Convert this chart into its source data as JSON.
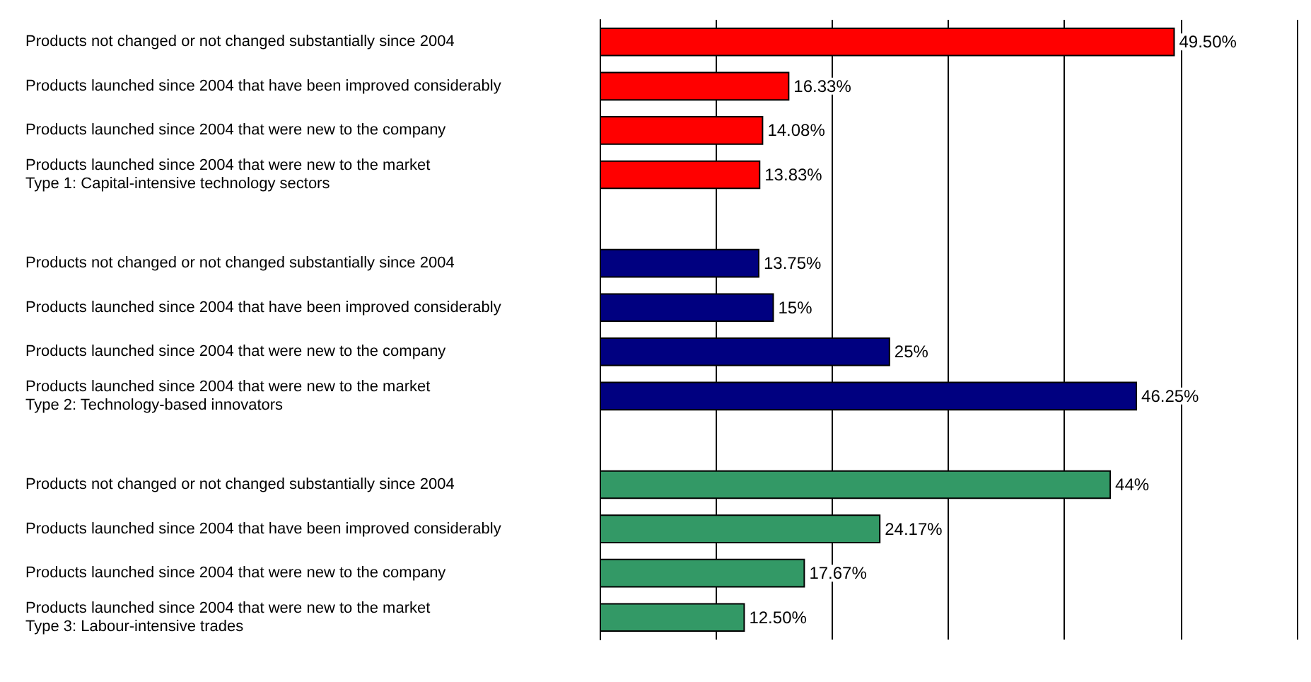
{
  "chart_data": {
    "type": "bar",
    "orientation": "horizontal",
    "stacked": true,
    "categories": [
      "Products not changed or not changed substantially since 2004",
      "Products launched since 2004 that have been improved considerably",
      "Products launched since 2004 that were new to the company",
      "Products launched since 2004 that were new to the market\nType 1: Capital-intensive technology sectors",
      null,
      "Products not changed or not changed substantially since 2004",
      "Products launched since 2004 that have been improved considerably",
      "Products launched since 2004 that were new to the company",
      "Products launched since 2004 that were new to the market\nType 2: Technology-based innovators",
      null,
      "Products not changed or not changed substantially since 2004",
      "Products launched since 2004 that have been improved considerably",
      "Products launched since 2004 that were new to the company",
      "Products launched since 2004 that were new to the market\nType 3: Labour-intensive trades"
    ],
    "series": [
      {
        "color": "#ff0000",
        "values": [
          49.5,
          16.33,
          14.08,
          13.83,
          null,
          null,
          null,
          null,
          null,
          null,
          null,
          null,
          null,
          null
        ],
        "value_labels": [
          "49.50%",
          "16.33%",
          "14.08%",
          "13.83%",
          null,
          null,
          null,
          null,
          null,
          null,
          null,
          null,
          null,
          null
        ]
      },
      {
        "color": "#000080",
        "values": [
          null,
          null,
          null,
          null,
          null,
          13.75,
          15,
          25,
          46.25,
          null,
          null,
          null,
          null,
          null
        ],
        "value_labels": [
          null,
          null,
          null,
          null,
          null,
          "13.75%",
          "15%",
          "25%",
          "46.25%",
          null,
          null,
          null,
          null,
          null
        ]
      },
      {
        "color": "#339966",
        "values": [
          null,
          null,
          null,
          null,
          null,
          null,
          null,
          null,
          null,
          null,
          44,
          24.17,
          17.67,
          12.5
        ],
        "value_labels": [
          null,
          null,
          null,
          null,
          null,
          null,
          null,
          null,
          null,
          null,
          "44%",
          "24.17%",
          "17.67%",
          "12.50%"
        ]
      }
    ],
    "xlim": [
      0,
      60
    ],
    "xticks": [
      0,
      10,
      20,
      30,
      40,
      50,
      60
    ],
    "tick_labels": "y",
    "grid": "x"
  }
}
